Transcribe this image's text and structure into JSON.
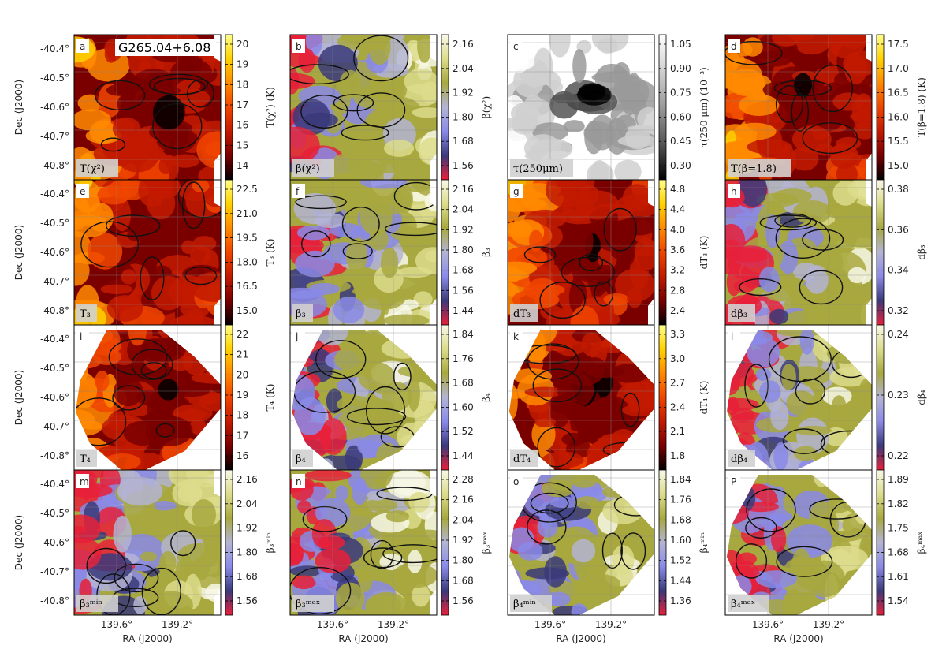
{
  "figure": {
    "object_label": "G265.04+6.08",
    "dec_ticks": [
      "-40.4°",
      "-40.5°",
      "-40.6°",
      "-40.7°",
      "-40.8°"
    ],
    "ra_ticks": [
      "139.6°",
      "139.2°"
    ],
    "ylabel": "Dec (J2000)",
    "xlabel": "RA (J2000)"
  },
  "colormaps": {
    "hot": [
      "#000000",
      "#7a0000",
      "#c21a00",
      "#f04500",
      "#ff8a00",
      "#ffd200",
      "#ffff8a"
    ],
    "beta": [
      "#e8203a",
      "#3a3a7a",
      "#8a8ae8",
      "#b4b4d4",
      "#a8a840",
      "#dcdc8c",
      "#f8f8e8"
    ],
    "gray": [
      "#000000",
      "#555555",
      "#9a9a9a",
      "#d0d0d0",
      "#ffffff"
    ]
  },
  "chart_data": [
    {
      "type": "heatmap",
      "letter": "a",
      "label": "T(χ²)",
      "cbar_label": "T(χ²) (K)",
      "cmap": "hot",
      "ticks": [
        "20",
        "19",
        "18",
        "17",
        "16",
        "15",
        "14"
      ],
      "ticks_count": 7,
      "shape": "square",
      "shows_object_label": true
    },
    {
      "type": "heatmap",
      "letter": "b",
      "label": "β(χ²)",
      "cbar_label": "β(χ²)",
      "cmap": "beta",
      "ticks": [
        "2.16",
        "2.04",
        "1.92",
        "1.80",
        "1.68",
        "1.56"
      ],
      "shape": "square"
    },
    {
      "type": "heatmap",
      "letter": "c",
      "label": "τ(250μm)",
      "cbar_label": "τ(250 μm) (10⁻³)",
      "cmap": "gray",
      "ticks": [
        "1.05",
        "0.90",
        "0.75",
        "0.60",
        "0.45",
        "0.30"
      ],
      "shape": "square"
    },
    {
      "type": "heatmap",
      "letter": "d",
      "label": "T(β=1.8)",
      "cbar_label": "T(β=1.8) (K)",
      "cmap": "hot",
      "ticks": [
        "17.5",
        "17.0",
        "16.5",
        "16.0",
        "15.5",
        "15.0"
      ],
      "shape": "square"
    },
    {
      "type": "heatmap",
      "letter": "e",
      "label": "T₃",
      "cbar_label": "T₃ (K)",
      "cmap": "hot",
      "ticks": [
        "22.5",
        "21.0",
        "19.5",
        "18.0",
        "16.5",
        "15.0"
      ],
      "shape": "square"
    },
    {
      "type": "heatmap",
      "letter": "f",
      "label": "β₃",
      "cbar_label": "β₃",
      "cmap": "beta",
      "ticks": [
        "2.16",
        "2.04",
        "1.92",
        "1.80",
        "1.68",
        "1.56",
        "1.44"
      ],
      "shape": "square"
    },
    {
      "type": "heatmap",
      "letter": "g",
      "label": "dT₃",
      "cbar_label": "dT₃ (K)",
      "cmap": "hot",
      "ticks": [
        "4.8",
        "4.4",
        "4.0",
        "3.6",
        "3.2",
        "2.8",
        "2.4"
      ],
      "shape": "square"
    },
    {
      "type": "heatmap",
      "letter": "h",
      "label": "dβ₃",
      "cbar_label": "dβ₃",
      "cmap": "beta",
      "ticks": [
        "0.38",
        "0.36",
        "0.34",
        "0.32"
      ],
      "shape": "square"
    },
    {
      "type": "heatmap",
      "letter": "i",
      "label": "T₄",
      "cbar_label": "T₄ (K)",
      "cmap": "hot",
      "ticks": [
        "22",
        "21",
        "20",
        "19",
        "18",
        "17",
        "16"
      ],
      "shape": "diamond"
    },
    {
      "type": "heatmap",
      "letter": "j",
      "label": "β₄",
      "cbar_label": "β₄",
      "cmap": "beta",
      "ticks": [
        "1.84",
        "1.76",
        "1.68",
        "1.60",
        "1.52",
        "1.44"
      ],
      "shape": "diamond"
    },
    {
      "type": "heatmap",
      "letter": "k",
      "label": "dT₄",
      "cbar_label": "dT₄ (K)",
      "cmap": "hot",
      "ticks": [
        "3.3",
        "3.0",
        "2.7",
        "2.4",
        "2.1",
        "1.8"
      ],
      "shape": "diamond"
    },
    {
      "type": "heatmap",
      "letter": "l",
      "label": "dβ₄",
      "cbar_label": "dβ₄",
      "cmap": "beta",
      "ticks": [
        "0.24",
        "0.23",
        "0.22"
      ],
      "shape": "diamond"
    },
    {
      "type": "heatmap",
      "letter": "m",
      "label": "β₃ᵐⁱⁿ",
      "cbar_label": "β₃ᵐⁱⁿ",
      "cmap": "beta",
      "ticks": [
        "2.16",
        "2.04",
        "1.92",
        "1.80",
        "1.68",
        "1.56"
      ],
      "shape": "square"
    },
    {
      "type": "heatmap",
      "letter": "n",
      "label": "β₃ᵐᵃˣ",
      "cbar_label": "β₃ᵐᵃˣ",
      "cmap": "beta",
      "ticks": [
        "2.28",
        "2.16",
        "2.04",
        "1.92",
        "1.80",
        "1.68",
        "1.56"
      ],
      "shape": "square"
    },
    {
      "type": "heatmap",
      "letter": "o",
      "label": "β₄ᵐⁱⁿ",
      "cbar_label": "β₄ᵐⁱⁿ",
      "cmap": "beta",
      "ticks": [
        "1.84",
        "1.76",
        "1.68",
        "1.60",
        "1.52",
        "1.44",
        "1.36"
      ],
      "shape": "diamond"
    },
    {
      "type": "heatmap",
      "letter": "P",
      "label": "β₄ᵐᵃˣ",
      "cbar_label": "β₄ᵐᵃˣ",
      "cmap": "beta",
      "ticks": [
        "1.89",
        "1.82",
        "1.75",
        "1.68",
        "1.61",
        "1.54"
      ],
      "shape": "diamond"
    }
  ]
}
